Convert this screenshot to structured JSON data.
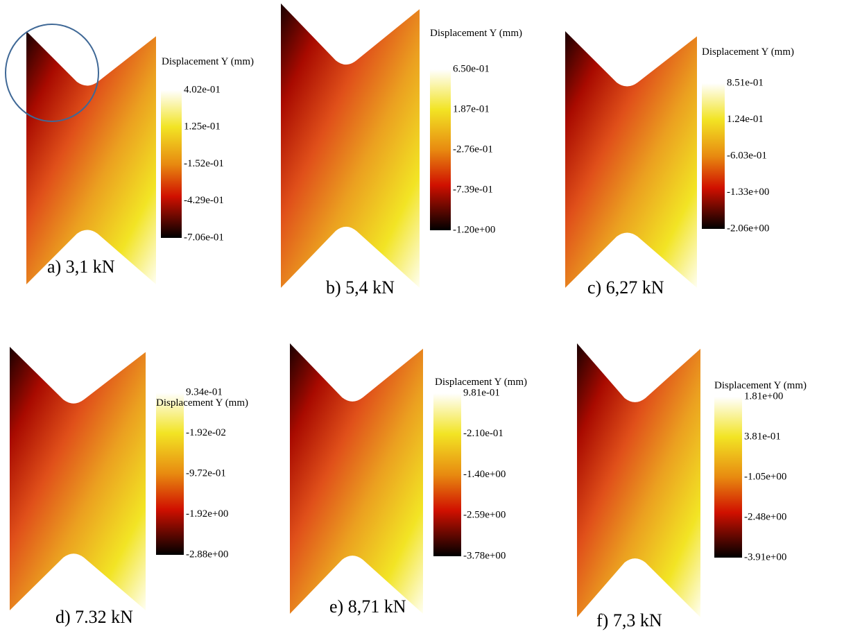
{
  "panels": [
    {
      "caption": "a) 3,1 kN",
      "legend_title": "Displacement Y (mm)",
      "ticks": [
        "4.02e-01",
        "1.25e-01",
        "-1.52e-01",
        "-4.29e-01",
        "-7.06e-01"
      ]
    },
    {
      "caption": "b) 5,4 kN",
      "legend_title": "Displacement Y (mm)",
      "ticks": [
        "6.50e-01",
        "1.87e-01",
        "-2.76e-01",
        "-7.39e-01",
        "-1.20e+00"
      ]
    },
    {
      "caption": "c) 6,27 kN",
      "legend_title": "Displacement Y (mm)",
      "ticks": [
        "8.51e-01",
        "1.24e-01",
        "-6.03e-01",
        "-1.33e+00",
        "-2.06e+00"
      ]
    },
    {
      "caption": "d) 7.32 kN",
      "legend_title": "Displacement Y (mm)",
      "ticks": [
        "9.34e-01",
        "-1.92e-02",
        "-9.72e-01",
        "-1.92e+00",
        "-2.88e+00"
      ]
    },
    {
      "caption": "e) 8,71 kN",
      "legend_title": "Displacement Y (mm)",
      "ticks": [
        "9.81e-01",
        "-2.10e-01",
        "-1.40e+00",
        "-2.59e+00",
        "-3.78e+00"
      ]
    },
    {
      "caption": "f) 7,3 kN",
      "legend_title": "Displacement Y (mm)",
      "ticks": [
        "1.81e+00",
        "3.81e-01",
        "-1.05e+00",
        "-2.48e+00",
        "-3.91e+00"
      ]
    }
  ]
}
